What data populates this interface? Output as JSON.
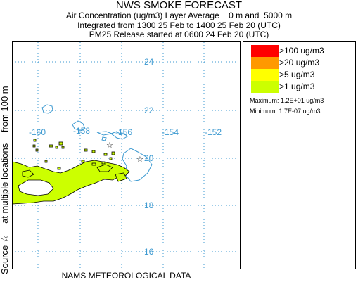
{
  "header": {
    "title": "NWS SMOKE FORECAST",
    "line1": "Air Concentration (ug/m3) Layer Average    0 m and  5000 m",
    "line2": "Integrated from 1300 25 Feb to 1400 25 Feb 20 (UTC)",
    "line3": "PM25 Release started at 0600 24 Feb 20 (UTC)"
  },
  "side_label": {
    "prefix": "Source ☆",
    "middle": "at multiple locations",
    "suffix": "from   100 m"
  },
  "map": {
    "longitude_labels": [
      "-160",
      "-158",
      "-156",
      "-154",
      "-152"
    ],
    "latitude_labels": [
      "24",
      "22",
      "20",
      "18",
      "16"
    ],
    "grid_color": "#3d9ad1",
    "coast_color": "#3d9ad1",
    "smoke_color": "#ccff00",
    "smoke_outline": "#000000",
    "source_marker": "star-icon"
  },
  "legend": {
    "items": [
      {
        "label": ">100 ug/m3",
        "color": "#ff0000"
      },
      {
        "label": ">20 ug/m3",
        "color": "#ff9900"
      },
      {
        "label": ">5 ug/m3",
        "color": "#ffff00"
      },
      {
        "label": ">1 ug/m3",
        "color": "#ccff00"
      }
    ],
    "maximum": "Maximum: 1.2E+01 ug/m3",
    "minimum": "Minimum: 1.7E-07 ug/m3"
  },
  "footer": "NAMS METEOROLOGICAL DATA"
}
